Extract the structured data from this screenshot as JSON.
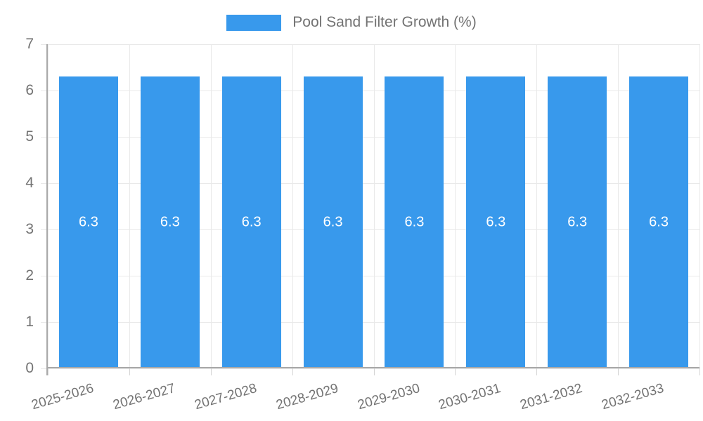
{
  "chart": {
    "legend_label": "Pool Sand Filter Growth (%)"
  },
  "chart_data": {
    "type": "bar",
    "title": "",
    "xlabel": "",
    "ylabel": "",
    "categories": [
      "2025-2026",
      "2026-2027",
      "2027-2028",
      "2028-2029",
      "2029-2030",
      "2030-2031",
      "2031-2032",
      "2032-2033"
    ],
    "series": [
      {
        "name": "Pool Sand Filter Growth (%)",
        "values": [
          6.3,
          6.3,
          6.3,
          6.3,
          6.3,
          6.3,
          6.3,
          6.3
        ]
      }
    ],
    "value_labels": [
      "6.3",
      "6.3",
      "6.3",
      "6.3",
      "6.3",
      "6.3",
      "6.3",
      "6.3"
    ],
    "ylim": [
      0,
      7
    ],
    "yticks": [
      0,
      1,
      2,
      3,
      4,
      5,
      6,
      7
    ],
    "grid": true,
    "legend_position": "top",
    "bar_color": "#3899ec",
    "value_label_color": "#ffffff",
    "axis_text_color": "#737373"
  }
}
